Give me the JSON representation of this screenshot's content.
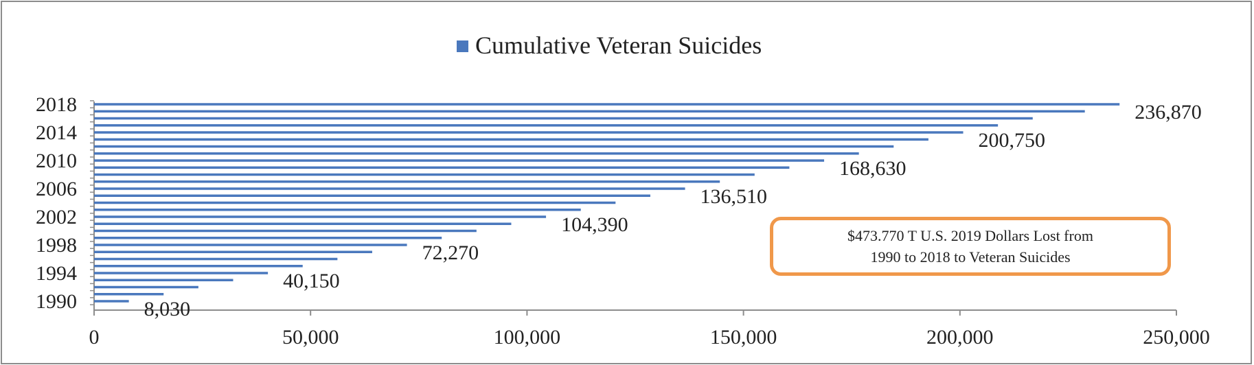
{
  "colors": {
    "bar": "#4a78bd",
    "axis": "#8c8c8c",
    "callout_border": "#f0984a",
    "text": "#222222"
  },
  "chart_data": {
    "type": "bar",
    "orientation": "horizontal",
    "title": "",
    "xlabel": "",
    "ylabel": "",
    "legend": {
      "label": "Cumulative Veteran Suicides",
      "position": "top"
    },
    "xlim": [
      0,
      250000
    ],
    "x_ticks": [
      0,
      50000,
      100000,
      150000,
      200000,
      250000
    ],
    "x_tick_labels": [
      "0",
      "50,000",
      "100,000",
      "150,000",
      "200,000",
      "250,000"
    ],
    "y_tick_labels": [
      "1990",
      "1994",
      "1998",
      "2002",
      "2006",
      "2010",
      "2014",
      "2018"
    ],
    "categories": [
      1990,
      1991,
      1992,
      1993,
      1994,
      1995,
      1996,
      1997,
      1998,
      1999,
      2000,
      2001,
      2002,
      2003,
      2004,
      2005,
      2006,
      2007,
      2008,
      2009,
      2010,
      2011,
      2012,
      2013,
      2014,
      2015,
      2016,
      2017,
      2018
    ],
    "series": [
      {
        "name": "Cumulative Veteran Suicides",
        "values": [
          8030,
          16060,
          24090,
          32120,
          40150,
          48180,
          56210,
          64240,
          72270,
          80300,
          88330,
          96360,
          104390,
          112420,
          120450,
          128480,
          136510,
          144540,
          152570,
          160600,
          168630,
          176660,
          184690,
          192720,
          200750,
          208780,
          216810,
          228850,
          236870
        ]
      }
    ],
    "data_labels": [
      {
        "year": 1990,
        "text": "8,030"
      },
      {
        "year": 1994,
        "text": "40,150"
      },
      {
        "year": 1998,
        "text": "72,270"
      },
      {
        "year": 2002,
        "text": "104,390"
      },
      {
        "year": 2006,
        "text": "136,510"
      },
      {
        "year": 2010,
        "text": "168,630"
      },
      {
        "year": 2014,
        "text": "200,750"
      },
      {
        "year": 2018,
        "text": "236,870"
      }
    ],
    "annotation": "$473.770 T U.S. 2019 Dollars Lost from\n1990 to 2018 to Veteran Suicides"
  }
}
